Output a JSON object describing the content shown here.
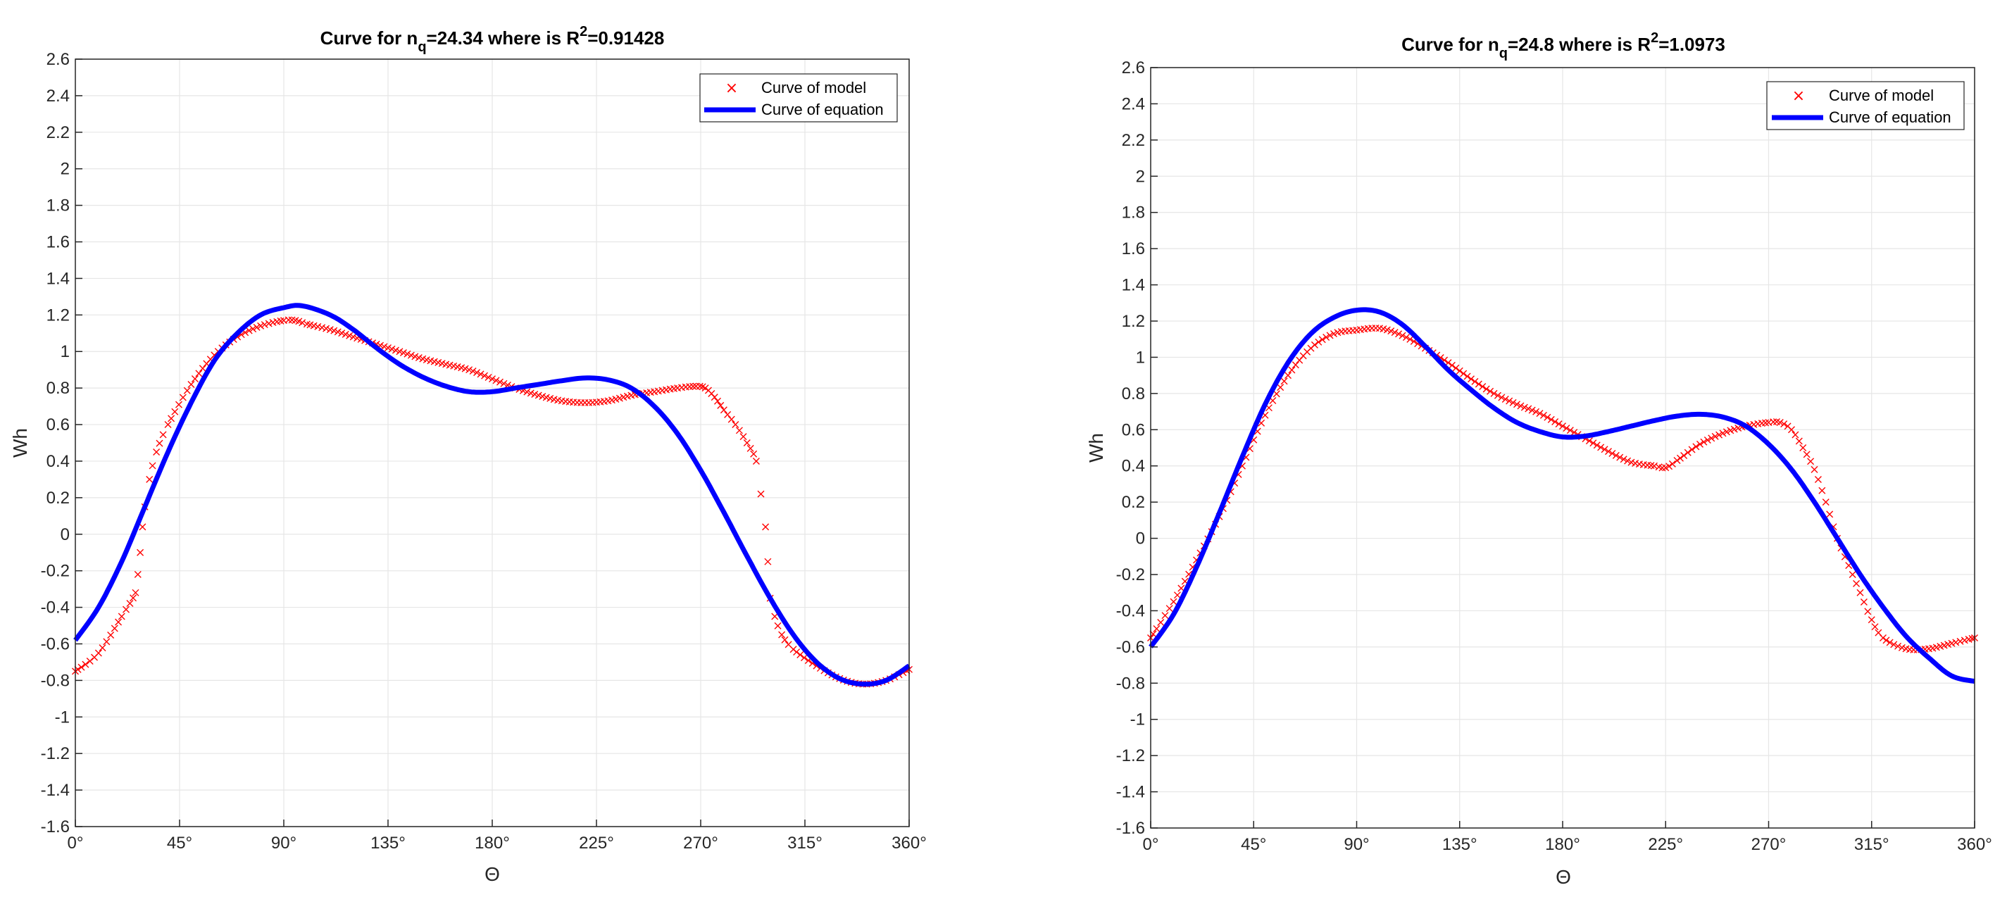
{
  "figure": {
    "title_left_prefix": "Curve for n",
    "title_left_sub": "q",
    "title_left_mid": "=24.34 where is R",
    "title_left_sup": "2",
    "title_left_end": "=0.91428",
    "title_right_prefix": "Curve for n",
    "title_right_sub": "q",
    "title_right_mid": "=24.8 where is R",
    "title_right_sup": "2",
    "title_right_end": "=1.0973"
  },
  "colors": {
    "model": "#ff0000",
    "equation": "#0000ff",
    "grid": "#e6e6e6",
    "axis": "#262626"
  },
  "chart_data": [
    {
      "type": "line",
      "title": "Curve for n_q=24.34 where is R^2=0.91428",
      "xlabel": "Θ",
      "ylabel": "Wh",
      "xlim": [
        0,
        360
      ],
      "ylim": [
        -1.6,
        2.6
      ],
      "xticks": [
        0,
        45,
        90,
        135,
        180,
        225,
        270,
        315,
        360
      ],
      "xtick_labels": [
        "0°",
        "45°",
        "90°",
        "135°",
        "180°",
        "225°",
        "270°",
        "315°",
        "360°"
      ],
      "yticks": [
        -1.6,
        -1.4,
        -1.2,
        -1,
        -0.8,
        -0.6,
        -0.4,
        -0.2,
        0,
        0.2,
        0.4,
        0.6,
        0.8,
        1,
        1.2,
        1.4,
        1.6,
        1.8,
        2,
        2.2,
        2.4,
        2.6
      ],
      "ytick_labels": [
        "-1.6",
        "-1.4",
        "-1.2",
        "-1",
        "-0.8",
        "-0.6",
        "-0.4",
        "-0.2",
        "0",
        "0.2",
        "0.4",
        "0.6",
        "0.8",
        "1",
        "1.2",
        "1.4",
        "1.6",
        "1.8",
        "2",
        "2.2",
        "2.4",
        "2.6"
      ],
      "grid": true,
      "legend": "top-right",
      "series": [
        {
          "name": "Curve of model",
          "style": "markers-x",
          "points": [
            [
              0,
              -0.75
            ],
            [
              10,
              -0.65
            ],
            [
              20,
              -0.45
            ],
            [
              26,
              -0.32
            ],
            [
              27,
              -0.22
            ],
            [
              28,
              -0.1
            ],
            [
              29,
              0.04
            ],
            [
              30,
              0.15
            ],
            [
              32,
              0.3
            ],
            [
              35,
              0.45
            ],
            [
              40,
              0.6
            ],
            [
              50,
              0.82
            ],
            [
              60,
              0.98
            ],
            [
              70,
              1.08
            ],
            [
              80,
              1.14
            ],
            [
              90,
              1.17
            ],
            [
              95,
              1.17
            ],
            [
              100,
              1.15
            ],
            [
              110,
              1.12
            ],
            [
              120,
              1.08
            ],
            [
              130,
              1.04
            ],
            [
              140,
              1.0
            ],
            [
              150,
              0.96
            ],
            [
              160,
              0.93
            ],
            [
              170,
              0.9
            ],
            [
              180,
              0.85
            ],
            [
              190,
              0.8
            ],
            [
              200,
              0.76
            ],
            [
              210,
              0.73
            ],
            [
              220,
              0.72
            ],
            [
              230,
              0.73
            ],
            [
              240,
              0.76
            ],
            [
              250,
              0.78
            ],
            [
              260,
              0.8
            ],
            [
              268,
              0.81
            ],
            [
              272,
              0.8
            ],
            [
              276,
              0.75
            ],
            [
              280,
              0.68
            ],
            [
              285,
              0.6
            ],
            [
              290,
              0.5
            ],
            [
              294,
              0.4
            ],
            [
              296,
              0.22
            ],
            [
              298,
              0.04
            ],
            [
              299,
              -0.15
            ],
            [
              300,
              -0.35
            ],
            [
              302,
              -0.45
            ],
            [
              305,
              -0.55
            ],
            [
              310,
              -0.63
            ],
            [
              320,
              -0.72
            ],
            [
              330,
              -0.79
            ],
            [
              340,
              -0.82
            ],
            [
              350,
              -0.8
            ],
            [
              360,
              -0.74
            ]
          ]
        },
        {
          "name": "Curve of equation",
          "style": "line",
          "points": [
            [
              0,
              -0.58
            ],
            [
              10,
              -0.4
            ],
            [
              20,
              -0.15
            ],
            [
              30,
              0.15
            ],
            [
              40,
              0.45
            ],
            [
              50,
              0.72
            ],
            [
              60,
              0.95
            ],
            [
              70,
              1.1
            ],
            [
              80,
              1.2
            ],
            [
              90,
              1.24
            ],
            [
              98,
              1.25
            ],
            [
              110,
              1.2
            ],
            [
              120,
              1.12
            ],
            [
              130,
              1.02
            ],
            [
              140,
              0.93
            ],
            [
              150,
              0.86
            ],
            [
              160,
              0.81
            ],
            [
              170,
              0.78
            ],
            [
              180,
              0.78
            ],
            [
              190,
              0.8
            ],
            [
              200,
              0.82
            ],
            [
              210,
              0.84
            ],
            [
              220,
              0.855
            ],
            [
              230,
              0.845
            ],
            [
              240,
              0.8
            ],
            [
              250,
              0.7
            ],
            [
              260,
              0.55
            ],
            [
              270,
              0.35
            ],
            [
              280,
              0.12
            ],
            [
              290,
              -0.12
            ],
            [
              300,
              -0.35
            ],
            [
              310,
              -0.55
            ],
            [
              320,
              -0.7
            ],
            [
              330,
              -0.79
            ],
            [
              340,
              -0.82
            ],
            [
              350,
              -0.8
            ],
            [
              360,
              -0.72
            ]
          ]
        }
      ]
    },
    {
      "type": "line",
      "title": "Curve for n_q=24.8 where is R^2=1.0973",
      "xlabel": "Θ",
      "ylabel": "Wh",
      "xlim": [
        0,
        360
      ],
      "ylim": [
        -1.6,
        2.6
      ],
      "xticks": [
        0,
        45,
        90,
        135,
        180,
        225,
        270,
        315,
        360
      ],
      "xtick_labels": [
        "0°",
        "45°",
        "90°",
        "135°",
        "180°",
        "225°",
        "270°",
        "315°",
        "360°"
      ],
      "yticks": [
        -1.6,
        -1.4,
        -1.2,
        -1,
        -0.8,
        -0.6,
        -0.4,
        -0.2,
        0,
        0.2,
        0.4,
        0.6,
        0.8,
        1,
        1.2,
        1.4,
        1.6,
        1.8,
        2,
        2.2,
        2.4,
        2.6
      ],
      "ytick_labels": [
        "-1.6",
        "-1.4",
        "-1.2",
        "-1",
        "-0.8",
        "-0.6",
        "-0.4",
        "-0.2",
        "0",
        "0.2",
        "0.4",
        "0.6",
        "0.8",
        "1",
        "1.2",
        "1.4",
        "1.6",
        "1.8",
        "2",
        "2.2",
        "2.4",
        "2.6"
      ],
      "grid": true,
      "legend": "top-right",
      "series": [
        {
          "name": "Curve of model",
          "style": "markers-x",
          "points": [
            [
              0,
              -0.55
            ],
            [
              10,
              -0.35
            ],
            [
              20,
              -0.12
            ],
            [
              30,
              0.12
            ],
            [
              40,
              0.4
            ],
            [
              50,
              0.68
            ],
            [
              60,
              0.9
            ],
            [
              70,
              1.05
            ],
            [
              80,
              1.13
            ],
            [
              90,
              1.15
            ],
            [
              100,
              1.16
            ],
            [
              110,
              1.12
            ],
            [
              120,
              1.05
            ],
            [
              130,
              0.97
            ],
            [
              140,
              0.88
            ],
            [
              150,
              0.8
            ],
            [
              160,
              0.74
            ],
            [
              170,
              0.69
            ],
            [
              180,
              0.62
            ],
            [
              190,
              0.55
            ],
            [
              200,
              0.48
            ],
            [
              210,
              0.42
            ],
            [
              220,
              0.4
            ],
            [
              225,
              0.39
            ],
            [
              230,
              0.43
            ],
            [
              240,
              0.52
            ],
            [
              250,
              0.58
            ],
            [
              260,
              0.62
            ],
            [
              270,
              0.64
            ],
            [
              275,
              0.64
            ],
            [
              280,
              0.6
            ],
            [
              285,
              0.5
            ],
            [
              290,
              0.38
            ],
            [
              295,
              0.2
            ],
            [
              300,
              0.0
            ],
            [
              305,
              -0.15
            ],
            [
              310,
              -0.3
            ],
            [
              315,
              -0.45
            ],
            [
              320,
              -0.55
            ],
            [
              330,
              -0.61
            ],
            [
              340,
              -0.61
            ],
            [
              350,
              -0.58
            ],
            [
              360,
              -0.55
            ]
          ]
        },
        {
          "name": "Curve of equation",
          "style": "line",
          "points": [
            [
              0,
              -0.6
            ],
            [
              10,
              -0.42
            ],
            [
              20,
              -0.16
            ],
            [
              30,
              0.14
            ],
            [
              40,
              0.45
            ],
            [
              50,
              0.74
            ],
            [
              60,
              0.97
            ],
            [
              70,
              1.13
            ],
            [
              80,
              1.22
            ],
            [
              90,
              1.26
            ],
            [
              100,
              1.25
            ],
            [
              110,
              1.18
            ],
            [
              120,
              1.06
            ],
            [
              130,
              0.93
            ],
            [
              140,
              0.82
            ],
            [
              150,
              0.72
            ],
            [
              160,
              0.64
            ],
            [
              170,
              0.59
            ],
            [
              180,
              0.56
            ],
            [
              190,
              0.565
            ],
            [
              200,
              0.59
            ],
            [
              210,
              0.62
            ],
            [
              220,
              0.65
            ],
            [
              230,
              0.675
            ],
            [
              240,
              0.685
            ],
            [
              250,
              0.67
            ],
            [
              260,
              0.62
            ],
            [
              270,
              0.52
            ],
            [
              280,
              0.38
            ],
            [
              290,
              0.2
            ],
            [
              300,
              0.0
            ],
            [
              310,
              -0.2
            ],
            [
              320,
              -0.38
            ],
            [
              330,
              -0.54
            ],
            [
              340,
              -0.66
            ],
            [
              350,
              -0.76
            ],
            [
              360,
              -0.79
            ]
          ]
        }
      ]
    }
  ]
}
